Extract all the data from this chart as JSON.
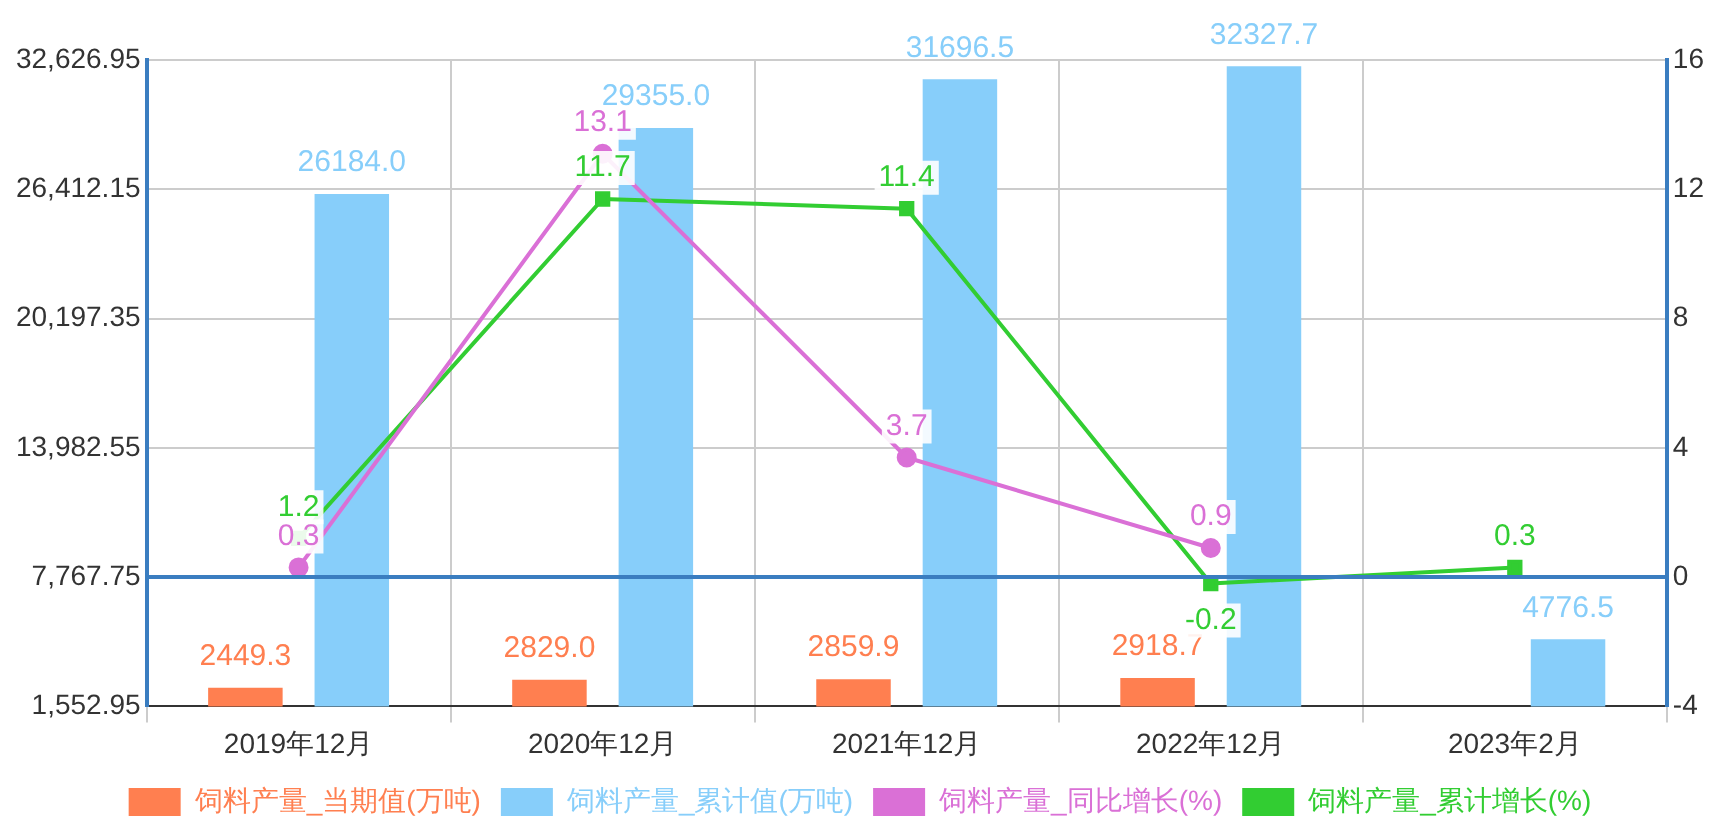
{
  "chart_data": {
    "type": "bar",
    "categories": [
      "2019年12月",
      "2020年12月",
      "2021年12月",
      "2022年12月",
      "2023年2月"
    ],
    "series": [
      {
        "name": "饲料产量_当期值(万吨)",
        "color": "#ff7f50",
        "values": [
          2449.3,
          2829.0,
          2859.9,
          2918.7,
          null
        ],
        "value_labels": [
          "2449.3",
          "2829.0",
          "2859.9",
          "2918.7",
          null
        ]
      },
      {
        "name": "饲料产量_累计值(万吨)",
        "color": "#87cefa",
        "values": [
          26184.0,
          29355.0,
          31696.5,
          32327.7,
          4776.5
        ],
        "value_labels": [
          "26184.0",
          "29355.0",
          "31696.5",
          "32327.7",
          "4776.5"
        ]
      },
      {
        "name": "饲料产量_同比增长(%)",
        "type": "line",
        "axis": "y2",
        "marker": "circle",
        "color": "#da70d6",
        "values": [
          0.3,
          13.1,
          3.7,
          0.9,
          null
        ],
        "value_labels": [
          "0.3",
          "13.1",
          "3.7",
          "0.9",
          null
        ]
      },
      {
        "name": "饲料产量_累计增长(%)",
        "type": "line",
        "axis": "y2",
        "marker": "square",
        "color": "#32cd32",
        "values": [
          1.2,
          11.7,
          11.4,
          -0.2,
          0.3
        ],
        "value_labels": [
          "1.2",
          "11.7",
          "11.4",
          "-0.2",
          "0.3"
        ]
      }
    ],
    "ylim": [
      1552.95,
      32626.95
    ],
    "yticks": [
      {
        "value": 1552.95,
        "label": "1,552.95"
      },
      {
        "value": 7767.75,
        "label": "7,767.75"
      },
      {
        "value": 13982.55,
        "label": "13,982.55"
      },
      {
        "value": 20197.35,
        "label": "20,197.35"
      },
      {
        "value": 26412.15,
        "label": "26,412.15"
      },
      {
        "value": 32626.95,
        "label": "32,626.95"
      }
    ],
    "y2lim": [
      -4,
      16
    ],
    "y2ticks": [
      -4,
      0,
      4,
      8,
      12,
      16
    ],
    "ref_lines": [
      {
        "axis": "y2",
        "value": 0,
        "color": "#3a7dc0"
      }
    ],
    "grid": true,
    "legend": "bottom"
  }
}
